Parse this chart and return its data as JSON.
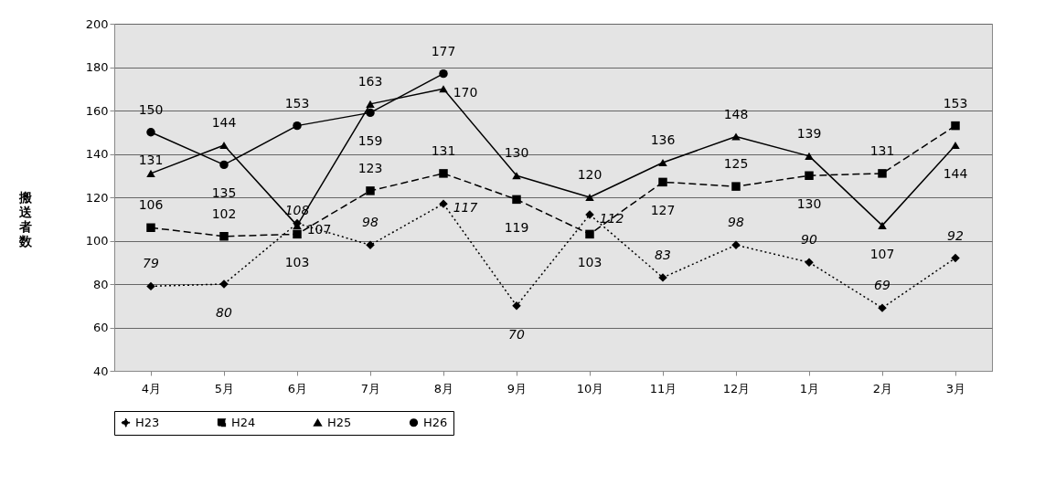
{
  "chart_data": {
    "type": "line",
    "ylabel": "搬送者数",
    "categories": [
      "4月",
      "5月",
      "6月",
      "7月",
      "8月",
      "9月",
      "10月",
      "11月",
      "12月",
      "1月",
      "2月",
      "3月"
    ],
    "series": [
      {
        "name": "H23",
        "color": "#000000",
        "marker": "diamond",
        "line_style": "dotted",
        "values": [
          79,
          80,
          108,
          98,
          117,
          70,
          112,
          83,
          98,
          90,
          69,
          92
        ]
      },
      {
        "name": "H24",
        "color": "#000000",
        "marker": "square",
        "line_style": "dashed",
        "values": [
          106,
          102,
          103,
          123,
          131,
          119,
          103,
          127,
          125,
          130,
          131,
          153
        ]
      },
      {
        "name": "H25",
        "color": "#000000",
        "marker": "triangle",
        "line_style": "solid",
        "values": [
          131,
          144,
          107,
          163,
          170,
          130,
          120,
          136,
          148,
          139,
          107,
          144
        ]
      },
      {
        "name": "H26",
        "color": "#000000",
        "marker": "circle",
        "line_style": "solid",
        "values": [
          150,
          135,
          153,
          159,
          177,
          null,
          null,
          null,
          null,
          null,
          null,
          null
        ]
      }
    ],
    "ylim": [
      40,
      200
    ],
    "yticks": [
      40,
      60,
      80,
      100,
      120,
      140,
      160,
      180,
      200
    ],
    "grid": "y",
    "legend": "bottom",
    "data_labels": true
  }
}
